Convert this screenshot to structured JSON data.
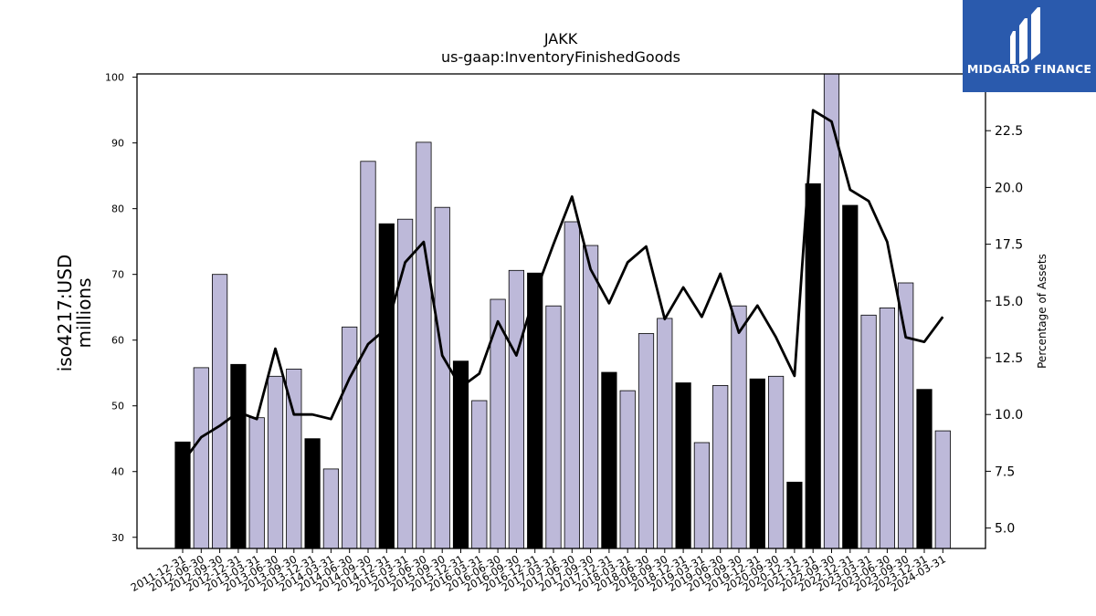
{
  "logo": {
    "brand": "MIDGARD FINANCE",
    "icon": "midgard-m-logo-icon",
    "bg_color": "#2a5aad"
  },
  "chart_data": {
    "type": "bar",
    "title": "JAKK",
    "subtitle": "us-gaap:InventoryFinishedGoods",
    "ylabel": "iso4217:USD\nmillions",
    "y2label": "Percentage of Assets",
    "ylim": [
      28.3,
      100.5
    ],
    "y2lim": [
      4.1,
      25.0
    ],
    "yticks": [
      30,
      40,
      50,
      60,
      70,
      80,
      90,
      100
    ],
    "y2ticks": [
      5.0,
      7.5,
      10.0,
      12.5,
      15.0,
      17.5,
      20.0,
      22.5
    ],
    "categories": [
      "2011-12-31",
      "2012-06-30",
      "2012-09-30",
      "2012-12-31",
      "2013-03-31",
      "2013-06-30",
      "2013-09-30",
      "2013-12-31",
      "2014-03-31",
      "2014-06-30",
      "2014-09-30",
      "2014-12-31",
      "2015-03-31",
      "2015-06-30",
      "2015-09-30",
      "2015-12-31",
      "2016-03-31",
      "2016-06-30",
      "2016-09-30",
      "2016-12-31",
      "2017-03-31",
      "2017-06-30",
      "2017-09-30",
      "2017-12-31",
      "2018-03-31",
      "2018-06-30",
      "2018-09-30",
      "2018-12-31",
      "2019-03-31",
      "2019-06-30",
      "2019-09-30",
      "2019-12-31",
      "2020-09-30",
      "2020-12-31",
      "2021-12-31",
      "2022-09-30",
      "2022-12-31",
      "2023-03-31",
      "2023-06-30",
      "2023-09-30",
      "2023-12-31",
      "2024-03-31"
    ],
    "series": [
      {
        "name": "",
        "axis": "left",
        "values": [
          44.5,
          55.8,
          70.0,
          56.3,
          48.2,
          54.5,
          55.6,
          45.0,
          40.4,
          62.0,
          87.2,
          77.7,
          78.4,
          90.1,
          80.2,
          56.8,
          50.8,
          66.2,
          70.6,
          70.2,
          65.2,
          78.0,
          74.4,
          55.1,
          52.3,
          61.0,
          63.3,
          53.5,
          44.4,
          53.1,
          65.2,
          54.1,
          54.5,
          38.4,
          83.8,
          101.5,
          80.5,
          63.8,
          64.9,
          68.7,
          52.5,
          46.2
        ],
        "year_end": [
          true,
          false,
          false,
          true,
          false,
          false,
          false,
          true,
          false,
          false,
          false,
          true,
          false,
          false,
          false,
          true,
          false,
          false,
          false,
          true,
          false,
          false,
          false,
          true,
          false,
          false,
          false,
          true,
          false,
          false,
          false,
          true,
          false,
          true,
          true,
          false,
          true,
          false,
          false,
          false,
          true,
          false
        ],
        "bar_color": "#bdb9d9",
        "year_end_color": "#000000"
      },
      {
        "name": "",
        "type": "line",
        "axis": "right",
        "values": [
          7.9,
          9.0,
          9.5,
          10.1,
          9.8,
          12.9,
          10.0,
          10.0,
          9.8,
          11.6,
          13.1,
          13.8,
          16.7,
          17.6,
          12.6,
          11.2,
          11.8,
          14.1,
          12.6,
          15.3,
          17.5,
          19.6,
          16.4,
          14.9,
          16.7,
          17.4,
          14.2,
          15.6,
          14.3,
          16.2,
          13.6,
          14.8,
          13.4,
          11.7,
          23.4,
          22.9,
          19.9,
          19.4,
          17.6,
          13.4,
          13.2,
          14.3
        ],
        "color": "#000000"
      }
    ],
    "grid": false,
    "legend": "none"
  }
}
